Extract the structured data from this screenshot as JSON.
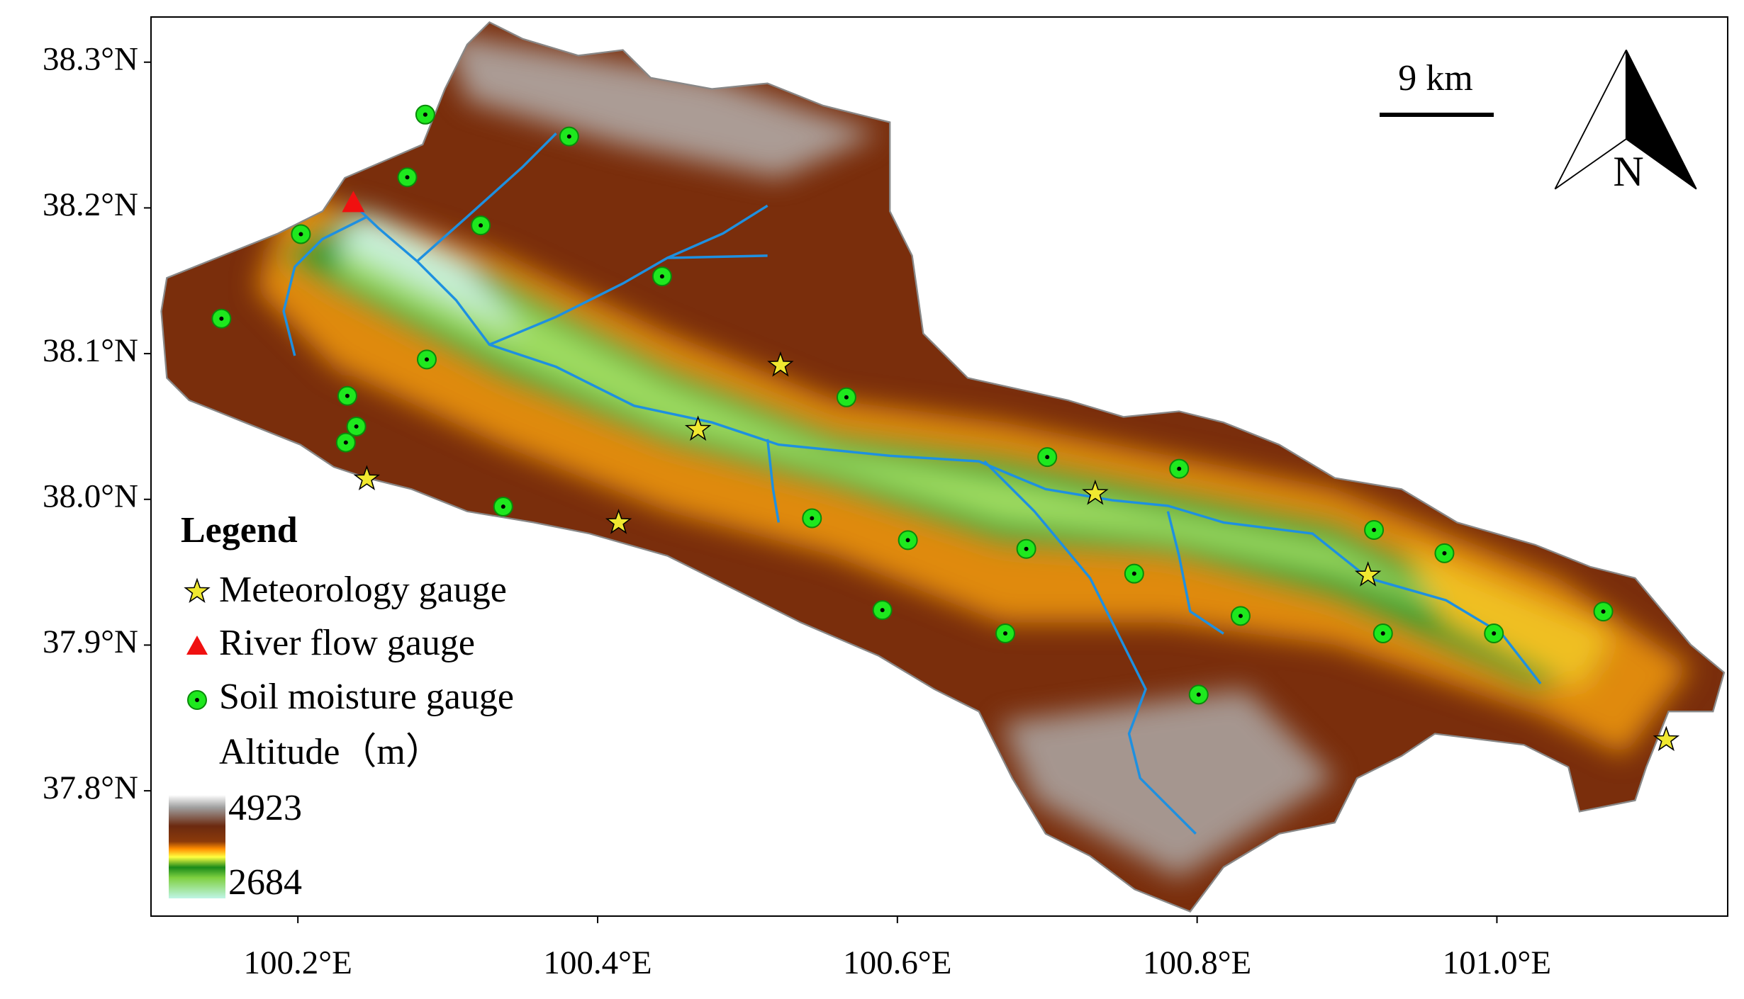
{
  "map": {
    "xlim": [
      100.102,
      101.154
    ],
    "ylim": [
      37.714,
      38.331
    ],
    "xticks": [
      {
        "value": 100.2,
        "label": "100.2°E"
      },
      {
        "value": 100.4,
        "label": "100.4°E"
      },
      {
        "value": 100.6,
        "label": "100.6°E"
      },
      {
        "value": 100.8,
        "label": "100.8°E"
      },
      {
        "value": 101.0,
        "label": "101.0°E"
      }
    ],
    "yticks": [
      {
        "value": 38.3,
        "label": "38.3°N"
      },
      {
        "value": 38.2,
        "label": "38.2°N"
      },
      {
        "value": 38.1,
        "label": "38.1°N"
      },
      {
        "value": 38.0,
        "label": "38.0°N"
      },
      {
        "value": 37.9,
        "label": "37.9°N"
      },
      {
        "value": 37.8,
        "label": "37.8°N"
      }
    ],
    "scale_bar": "9 km",
    "north": "N",
    "legend": {
      "title": "Legend",
      "meteorology": "Meteorology gauge",
      "river": "River flow gauge",
      "soil": "Soil moisture gauge",
      "altitude_title": "Altitude（m）",
      "altitude_max": 4923,
      "altitude_min": 2684
    },
    "meteorology_gauges": {
      "lon": [
        100.522,
        100.467,
        100.246,
        100.414,
        100.732,
        100.914,
        101.113
      ],
      "lat": [
        38.092,
        38.048,
        38.014,
        37.984,
        38.004,
        37.948,
        37.835
      ]
    },
    "river_gauges": {
      "lon": [
        100.237
      ],
      "lat": [
        38.202
      ]
    },
    "soil_gauges": {
      "lon": [
        100.285,
        100.381,
        100.273,
        100.322,
        100.202,
        100.443,
        100.149,
        100.286,
        100.233,
        100.239,
        100.232,
        100.566,
        100.337,
        100.7,
        100.788,
        100.543,
        100.607,
        100.686,
        100.918,
        100.965,
        100.758,
        100.59,
        100.672,
        100.829,
        100.924,
        100.998,
        101.071,
        100.801
      ],
      "lat": [
        38.264,
        38.249,
        38.221,
        38.188,
        38.182,
        38.153,
        38.124,
        38.096,
        38.071,
        38.05,
        38.039,
        38.07,
        37.995,
        38.029,
        38.021,
        37.987,
        37.972,
        37.966,
        37.979,
        37.963,
        37.949,
        37.924,
        37.908,
        37.92,
        37.908,
        37.908,
        37.923,
        37.866
      ]
    }
  }
}
